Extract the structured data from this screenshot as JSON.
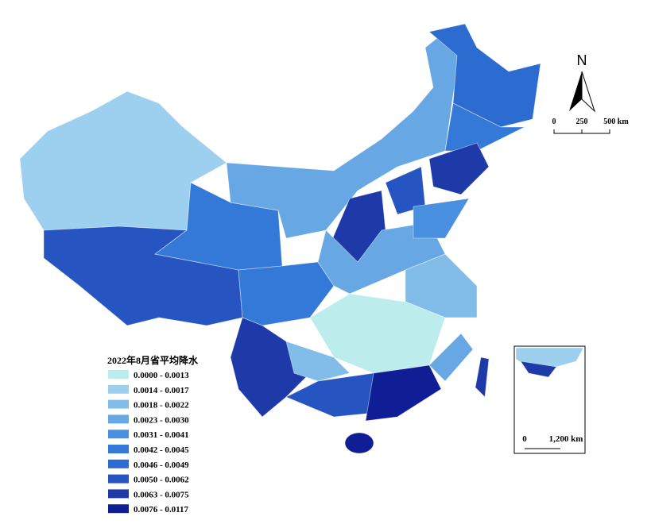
{
  "title": "2022年8月省平均降水",
  "legend": [
    {
      "label": "0.0000 - 0.0013",
      "color": "#bcecec"
    },
    {
      "label": "0.0014 - 0.0017",
      "color": "#9dd0ef"
    },
    {
      "label": "0.0018 - 0.0022",
      "color": "#82bdea"
    },
    {
      "label": "0.0023 - 0.0030",
      "color": "#66a7e4"
    },
    {
      "label": "0.0031 - 0.0041",
      "color": "#4a90e0"
    },
    {
      "label": "0.0042 - 0.0045",
      "color": "#3479d8"
    },
    {
      "label": "0.0046 - 0.0049",
      "color": "#2c6bd0"
    },
    {
      "label": "0.0050 - 0.0062",
      "color": "#2654c0"
    },
    {
      "label": "0.0063 - 0.0075",
      "color": "#1e3aa8"
    },
    {
      "label": "0.0076 - 0.0117",
      "color": "#101e96"
    }
  ],
  "north": "N",
  "scale_bar": [
    "0",
    "250",
    "500 km"
  ],
  "inset_scale_bar": [
    "0",
    "1,200 km"
  ]
}
